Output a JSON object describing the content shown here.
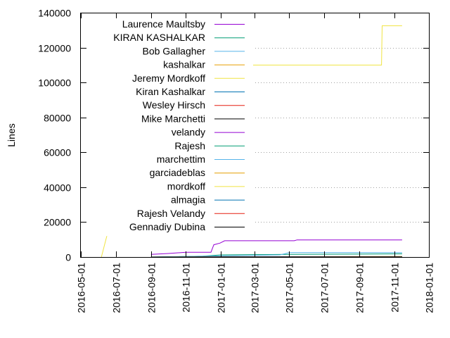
{
  "chart_data": {
    "type": "line",
    "title": "",
    "xlabel": "",
    "ylabel": "Lines",
    "ylim": [
      0,
      140000
    ],
    "xlim": [
      "2016-05-01",
      "2018-01-01"
    ],
    "grid": "dotted horizontal lines on y ticks",
    "legend_position": "top-left",
    "y_ticks": [
      "0",
      "20000",
      "40000",
      "60000",
      "80000",
      "100000",
      "120000",
      "140000"
    ],
    "y_tick_values": [
      0,
      20000,
      40000,
      60000,
      80000,
      100000,
      120000,
      140000
    ],
    "x_ticks": [
      "2016-05-01",
      "2016-07-01",
      "2016-09-01",
      "2016-11-01",
      "2017-01-01",
      "2017-03-01",
      "2017-05-01",
      "2017-07-01",
      "2017-09-01",
      "2017-11-01",
      "2018-01-01"
    ],
    "series": [
      {
        "name": "Laurence Maultsby",
        "color": "#9400d3",
        "points": [
          [
            "2016-09-01",
            1500
          ],
          [
            "2016-10-01",
            2000
          ],
          [
            "2016-11-01",
            2700
          ],
          [
            "2016-12-15",
            2700
          ],
          [
            "2016-12-20",
            7000
          ],
          [
            "2016-12-31",
            8000
          ],
          [
            "2017-01-08",
            9300
          ],
          [
            "2017-05-10",
            9300
          ],
          [
            "2017-05-15",
            9800
          ],
          [
            "2017-11-15",
            9800
          ]
        ]
      },
      {
        "name": "KIRAN KASHALKAR",
        "color": "#009e73",
        "points": [
          [
            "2016-09-01",
            0
          ],
          [
            "2016-12-01",
            500
          ],
          [
            "2017-01-01",
            1200
          ],
          [
            "2017-05-01",
            1500
          ],
          [
            "2017-11-15",
            1800
          ]
        ]
      },
      {
        "name": "Bob Gallagher",
        "color": "#56b4e9",
        "points": [
          [
            "2016-09-01",
            0
          ],
          [
            "2017-04-15",
            1200
          ],
          [
            "2017-05-01",
            2500
          ],
          [
            "2017-11-15",
            2500
          ]
        ]
      },
      {
        "name": "kashalkar",
        "color": "#e69f00",
        "points": [
          [
            "2016-09-01",
            0
          ],
          [
            "2017-11-15",
            300
          ]
        ]
      },
      {
        "name": "Jeremy Mordkoff",
        "color": "#f0e442",
        "points": [
          [
            "2016-06-06",
            0
          ],
          [
            "2016-09-01",
            110000
          ],
          [
            "2017-10-10",
            110000
          ],
          [
            "2017-10-11",
            132500
          ],
          [
            "2017-11-15",
            132500
          ]
        ]
      },
      {
        "name": "Kiran Kashalkar",
        "color": "#0072b2",
        "points": [
          [
            "2016-09-01",
            0
          ],
          [
            "2017-11-15",
            200
          ]
        ]
      },
      {
        "name": "Wesley Hirsch",
        "color": "#e51e10",
        "points": [
          [
            "2016-09-01",
            0
          ],
          [
            "2017-11-15",
            150
          ]
        ]
      },
      {
        "name": "Mike Marchetti",
        "color": "#000000",
        "points": [
          [
            "2016-09-01",
            0
          ],
          [
            "2017-11-15",
            100
          ]
        ]
      },
      {
        "name": "velandy",
        "color": "#9400d3",
        "points": [
          [
            "2016-09-01",
            0
          ],
          [
            "2017-11-15",
            100
          ]
        ]
      },
      {
        "name": "Rajesh",
        "color": "#009e73",
        "points": [
          [
            "2016-09-01",
            0
          ],
          [
            "2017-11-15",
            100
          ]
        ]
      },
      {
        "name": "marchettim",
        "color": "#56b4e9",
        "points": [
          [
            "2016-09-01",
            0
          ],
          [
            "2017-11-15",
            50
          ]
        ]
      },
      {
        "name": "garciadeblas",
        "color": "#e69f00",
        "points": [
          [
            "2016-09-01",
            0
          ],
          [
            "2017-11-15",
            50
          ]
        ]
      },
      {
        "name": "mordkoff",
        "color": "#f0e442",
        "points": [
          [
            "2016-09-01",
            0
          ],
          [
            "2017-11-15",
            50
          ]
        ]
      },
      {
        "name": "almagia",
        "color": "#0072b2",
        "points": [
          [
            "2016-09-01",
            0
          ],
          [
            "2017-11-15",
            50
          ]
        ]
      },
      {
        "name": "Rajesh Velandy",
        "color": "#e51e10",
        "points": [
          [
            "2016-09-01",
            0
          ],
          [
            "2017-11-15",
            50
          ]
        ]
      },
      {
        "name": "Gennadiy Dubina",
        "color": "#000000",
        "points": [
          [
            "2016-09-01",
            0
          ],
          [
            "2017-11-15",
            50
          ]
        ]
      }
    ]
  }
}
